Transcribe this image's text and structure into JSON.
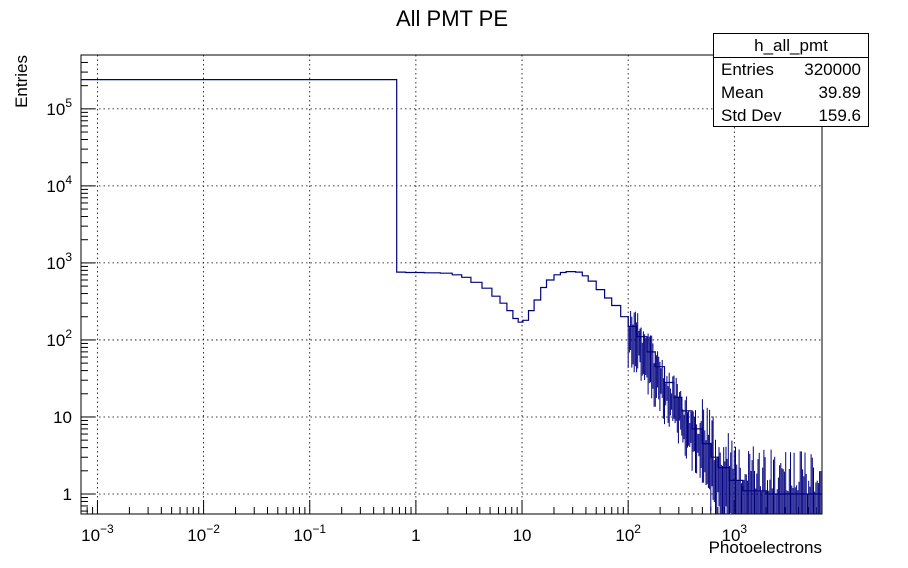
{
  "chart_data": {
    "type": "line",
    "title": "All PMT PE",
    "xlabel": "Photoelectrons",
    "ylabel": "Entries",
    "x_scale": "log",
    "y_scale": "log",
    "xlim": [
      0.0007,
      6700
    ],
    "ylim": [
      0.55,
      500000
    ],
    "grid": true,
    "x_ticks": [
      {
        "value": 0.001,
        "base": "10",
        "exp": "−3"
      },
      {
        "value": 0.01,
        "base": "10",
        "exp": "−2"
      },
      {
        "value": 0.1,
        "base": "10",
        "exp": "−1"
      },
      {
        "value": 1,
        "base": "1",
        "exp": ""
      },
      {
        "value": 10,
        "base": "10",
        "exp": ""
      },
      {
        "value": 100,
        "base": "10",
        "exp": "2"
      },
      {
        "value": 1000,
        "base": "10",
        "exp": "3"
      }
    ],
    "y_ticks": [
      {
        "value": 1,
        "base": "1",
        "exp": ""
      },
      {
        "value": 10,
        "base": "10",
        "exp": ""
      },
      {
        "value": 100,
        "base": "10",
        "exp": "2"
      },
      {
        "value": 1000,
        "base": "10",
        "exp": "3"
      },
      {
        "value": 10000,
        "base": "10",
        "exp": "4"
      },
      {
        "value": 100000,
        "base": "10",
        "exp": "5"
      }
    ],
    "series": [
      {
        "name": "h_all_pmt",
        "color": "#000080",
        "points": [
          [
            0.0007,
            240000
          ],
          [
            0.66,
            240000
          ],
          [
            0.66,
            760
          ],
          [
            0.8,
            750
          ],
          [
            1.2,
            745
          ],
          [
            1.7,
            735
          ],
          [
            2.2,
            700
          ],
          [
            2.7,
            650
          ],
          [
            3.3,
            560
          ],
          [
            4.2,
            470
          ],
          [
            5.2,
            370
          ],
          [
            6.2,
            300
          ],
          [
            7.2,
            240
          ],
          [
            8.2,
            190
          ],
          [
            9.2,
            170
          ],
          [
            10.2,
            180
          ],
          [
            11.5,
            240
          ],
          [
            13,
            330
          ],
          [
            15,
            480
          ],
          [
            17,
            600
          ],
          [
            20,
            700
          ],
          [
            23,
            750
          ],
          [
            26,
            770
          ],
          [
            29,
            770
          ],
          [
            32,
            760
          ],
          [
            37,
            680
          ],
          [
            42,
            580
          ],
          [
            50,
            450
          ],
          [
            60,
            350
          ],
          [
            70,
            280
          ],
          [
            85,
            200
          ],
          [
            100,
            150
          ],
          [
            120,
            110
          ],
          [
            150,
            70
          ],
          [
            180,
            45
          ],
          [
            220,
            28
          ],
          [
            270,
            18
          ],
          [
            320,
            12
          ],
          [
            400,
            7
          ],
          [
            500,
            4.5
          ],
          [
            600,
            3
          ],
          [
            700,
            2.2
          ],
          [
            900,
            1.5
          ],
          [
            1200,
            1.1
          ],
          [
            2000,
            1
          ],
          [
            6700,
            1
          ]
        ]
      }
    ]
  },
  "stats_box": {
    "title": "h_all_pmt",
    "rows": [
      {
        "label": "Entries",
        "value": "320000"
      },
      {
        "label": "Mean",
        "value": "39.89"
      },
      {
        "label": "Std Dev",
        "value": "159.6"
      }
    ]
  }
}
